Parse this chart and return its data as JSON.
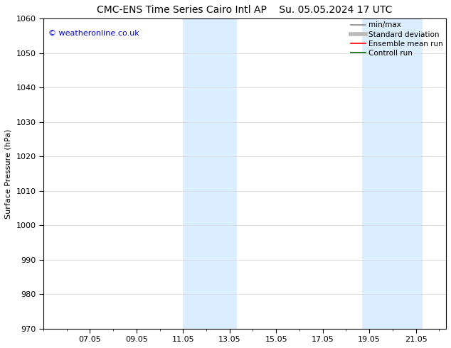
{
  "title": "CMC-ENS Time Series Cairo Intl AP",
  "title_date": "Su. 05.05.2024 17 UTC",
  "ylabel": "Surface Pressure (hPa)",
  "watermark": "© weatheronline.co.uk",
  "watermark_color": "#0000cc",
  "ylim": [
    970,
    1060
  ],
  "yticks": [
    970,
    980,
    990,
    1000,
    1010,
    1020,
    1030,
    1040,
    1050,
    1060
  ],
  "x_min": 5.0,
  "x_max": 22.3,
  "x_tick_labels": [
    "07.05",
    "09.05",
    "11.05",
    "13.05",
    "15.05",
    "17.05",
    "19.05",
    "21.05"
  ],
  "x_tick_positions_day": [
    7,
    9,
    11,
    13,
    15,
    17,
    19,
    21
  ],
  "shaded_bands": [
    {
      "start_day": 11.0,
      "end_day": 13.3,
      "color": "#daeeff",
      "alpha": 1.0
    },
    {
      "start_day": 18.7,
      "end_day": 21.3,
      "color": "#daeeff",
      "alpha": 1.0
    }
  ],
  "legend_items": [
    {
      "label": "min/max",
      "color": "#888888",
      "lw": 1.2,
      "style": "-"
    },
    {
      "label": "Standard deviation",
      "color": "#bbbbbb",
      "lw": 4,
      "style": "-"
    },
    {
      "label": "Ensemble mean run",
      "color": "#ff0000",
      "lw": 1.2,
      "style": "-"
    },
    {
      "label": "Controll run",
      "color": "#006600",
      "lw": 1.2,
      "style": "-"
    }
  ],
  "bg_color": "#ffffff",
  "plot_bg_color": "#ffffff",
  "grid_color": "#dddddd",
  "title_fontsize": 10,
  "label_fontsize": 8,
  "tick_fontsize": 8,
  "legend_fontsize": 7.5
}
